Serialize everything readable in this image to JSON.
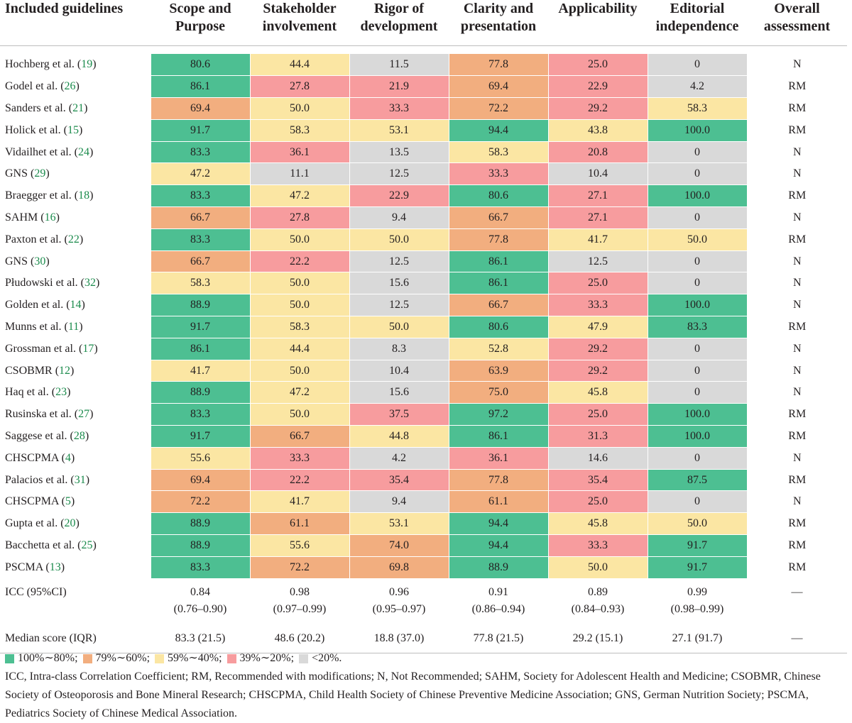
{
  "table": {
    "headers": [
      "Included guidelines",
      "Scope and Purpose",
      "Stakeholder involvement",
      "Rigor of development",
      "Clarity and presentation",
      "Applicability",
      "Editorial independence",
      "Overall assessment"
    ],
    "colors": {
      "g": "#4dbf92",
      "o": "#f2ae7f",
      "y": "#fbe6a3",
      "p": "#f79c9e",
      "gr": "#d9d9d9"
    },
    "rows": [
      {
        "name": "Hochberg et al. (",
        "ref": "19",
        "values": [
          "80.6",
          "44.4",
          "11.5",
          "77.8",
          "25.0",
          "0"
        ],
        "colors": [
          "g",
          "y",
          "gr",
          "o",
          "p",
          "gr"
        ],
        "overall": "N"
      },
      {
        "name": "Godel et al. (",
        "ref": "26",
        "values": [
          "86.1",
          "27.8",
          "21.9",
          "69.4",
          "22.9",
          "4.2"
        ],
        "colors": [
          "g",
          "p",
          "p",
          "o",
          "p",
          "gr"
        ],
        "overall": "RM"
      },
      {
        "name": "Sanders et al. (",
        "ref": "21",
        "values": [
          "69.4",
          "50.0",
          "33.3",
          "72.2",
          "29.2",
          "58.3"
        ],
        "colors": [
          "o",
          "y",
          "p",
          "o",
          "p",
          "y"
        ],
        "overall": "RM"
      },
      {
        "name": "Holick et al. (",
        "ref": "15",
        "values": [
          "91.7",
          "58.3",
          "53.1",
          "94.4",
          "43.8",
          "100.0"
        ],
        "colors": [
          "g",
          "y",
          "y",
          "g",
          "y",
          "g"
        ],
        "overall": "RM"
      },
      {
        "name": "Vidailhet et al. (",
        "ref": "24",
        "values": [
          "83.3",
          "36.1",
          "13.5",
          "58.3",
          "20.8",
          "0"
        ],
        "colors": [
          "g",
          "p",
          "gr",
          "y",
          "p",
          "gr"
        ],
        "overall": "N"
      },
      {
        "name": "GNS (",
        "ref": "29",
        "values": [
          "47.2",
          "11.1",
          "12.5",
          "33.3",
          "10.4",
          "0"
        ],
        "colors": [
          "y",
          "gr",
          "gr",
          "p",
          "gr",
          "gr"
        ],
        "overall": "N"
      },
      {
        "name": "Braegger et al. (",
        "ref": "18",
        "values": [
          "83.3",
          "47.2",
          "22.9",
          "80.6",
          "27.1",
          "100.0"
        ],
        "colors": [
          "g",
          "y",
          "p",
          "g",
          "p",
          "g"
        ],
        "overall": "RM"
      },
      {
        "name": "SAHM (",
        "ref": "16",
        "values": [
          "66.7",
          "27.8",
          "9.4",
          "66.7",
          "27.1",
          "0"
        ],
        "colors": [
          "o",
          "p",
          "gr",
          "o",
          "p",
          "gr"
        ],
        "overall": "N"
      },
      {
        "name": "Paxton et al. (",
        "ref": "22",
        "values": [
          "83.3",
          "50.0",
          "50.0",
          "77.8",
          "41.7",
          "50.0"
        ],
        "colors": [
          "g",
          "y",
          "y",
          "o",
          "y",
          "y"
        ],
        "overall": "RM"
      },
      {
        "name": "GNS (",
        "ref": "30",
        "values": [
          "66.7",
          "22.2",
          "12.5",
          "86.1",
          "12.5",
          "0"
        ],
        "colors": [
          "o",
          "p",
          "gr",
          "g",
          "gr",
          "gr"
        ],
        "overall": "N"
      },
      {
        "name": "Płudowski et al. (",
        "ref": "32",
        "values": [
          "58.3",
          "50.0",
          "15.6",
          "86.1",
          "25.0",
          "0"
        ],
        "colors": [
          "y",
          "y",
          "gr",
          "g",
          "p",
          "gr"
        ],
        "overall": "N"
      },
      {
        "name": "Golden et al. (",
        "ref": "14",
        "values": [
          "88.9",
          "50.0",
          "12.5",
          "66.7",
          "33.3",
          "100.0"
        ],
        "colors": [
          "g",
          "y",
          "gr",
          "o",
          "p",
          "g"
        ],
        "overall": "N"
      },
      {
        "name": "Munns et al. (",
        "ref": "11",
        "values": [
          "91.7",
          "58.3",
          "50.0",
          "80.6",
          "47.9",
          "83.3"
        ],
        "colors": [
          "g",
          "y",
          "y",
          "g",
          "y",
          "g"
        ],
        "overall": "RM"
      },
      {
        "name": "Grossman et al. (",
        "ref": "17",
        "values": [
          "86.1",
          "44.4",
          "8.3",
          "52.8",
          "29.2",
          "0"
        ],
        "colors": [
          "g",
          "y",
          "gr",
          "y",
          "p",
          "gr"
        ],
        "overall": "N"
      },
      {
        "name": "CSOBMR (",
        "ref": "12",
        "values": [
          "41.7",
          "50.0",
          "10.4",
          "63.9",
          "29.2",
          "0"
        ],
        "colors": [
          "y",
          "y",
          "gr",
          "o",
          "p",
          "gr"
        ],
        "overall": "N"
      },
      {
        "name": "Haq et al. (",
        "ref": "23",
        "values": [
          "88.9",
          "47.2",
          "15.6",
          "75.0",
          "45.8",
          "0"
        ],
        "colors": [
          "g",
          "y",
          "gr",
          "o",
          "y",
          "gr"
        ],
        "overall": "N"
      },
      {
        "name": "Rusinska et al. (",
        "ref": "27",
        "values": [
          "83.3",
          "50.0",
          "37.5",
          "97.2",
          "25.0",
          "100.0"
        ],
        "colors": [
          "g",
          "y",
          "p",
          "g",
          "p",
          "g"
        ],
        "overall": "RM"
      },
      {
        "name": "Saggese et al. (",
        "ref": "28",
        "values": [
          "91.7",
          "66.7",
          "44.8",
          "86.1",
          "31.3",
          "100.0"
        ],
        "colors": [
          "g",
          "o",
          "y",
          "g",
          "p",
          "g"
        ],
        "overall": "RM"
      },
      {
        "name": "CHSCPMA (",
        "ref": "4",
        "values": [
          "55.6",
          "33.3",
          "4.2",
          "36.1",
          "14.6",
          "0"
        ],
        "colors": [
          "y",
          "p",
          "gr",
          "p",
          "gr",
          "gr"
        ],
        "overall": "N"
      },
      {
        "name": "Palacios et al. (",
        "ref": "31",
        "values": [
          "69.4",
          "22.2",
          "35.4",
          "77.8",
          "35.4",
          "87.5"
        ],
        "colors": [
          "o",
          "p",
          "p",
          "o",
          "p",
          "g"
        ],
        "overall": "RM"
      },
      {
        "name": "CHSCPMA (",
        "ref": "5",
        "values": [
          "72.2",
          "41.7",
          "9.4",
          "61.1",
          "25.0",
          "0"
        ],
        "colors": [
          "o",
          "y",
          "gr",
          "o",
          "p",
          "gr"
        ],
        "overall": "N"
      },
      {
        "name": "Gupta et al. (",
        "ref": "20",
        "values": [
          "88.9",
          "61.1",
          "53.1",
          "94.4",
          "45.8",
          "50.0"
        ],
        "colors": [
          "g",
          "o",
          "y",
          "g",
          "y",
          "y"
        ],
        "overall": "RM"
      },
      {
        "name": "Bacchetta et al. (",
        "ref": "25",
        "values": [
          "88.9",
          "55.6",
          "74.0",
          "94.4",
          "33.3",
          "91.7"
        ],
        "colors": [
          "g",
          "y",
          "o",
          "g",
          "p",
          "g"
        ],
        "overall": "RM"
      },
      {
        "name": "PSCMA (",
        "ref": "13",
        "values": [
          "83.3",
          "72.2",
          "69.8",
          "88.9",
          "50.0",
          "91.7"
        ],
        "colors": [
          "g",
          "o",
          "o",
          "g",
          "y",
          "g"
        ],
        "overall": "RM"
      }
    ],
    "icc": {
      "label": "ICC (95%CI)",
      "values": [
        "0.84",
        "0.98",
        "0.96",
        "0.91",
        "0.89",
        "0.99"
      ],
      "ci": [
        "(0.76–0.90)",
        "(0.97–0.99)",
        "(0.95–0.97)",
        "(0.86–0.94)",
        "(0.84–0.93)",
        "(0.98–0.99)"
      ],
      "overall": "—"
    },
    "median": {
      "label": "Median score (IQR)",
      "values": [
        "83.3 (21.5)",
        "48.6 (20.2)",
        "18.8 (37.0)",
        "77.8 (21.5)",
        "29.2 (15.1)",
        "27.1 (91.7)"
      ],
      "overall": "—"
    }
  },
  "legend": {
    "items": [
      {
        "color": "g",
        "label": "100%∼80%;"
      },
      {
        "color": "o",
        "label": "79%∼60%;"
      },
      {
        "color": "y",
        "label": "59%∼40%;"
      },
      {
        "color": "p",
        "label": "39%∼20%;"
      },
      {
        "color": "gr",
        "label": "<20%."
      }
    ],
    "footnote": "ICC, Intra-class Correlation Coefficient; RM, Recommended with modifications; N, Not Recommended; SAHM, Society for Adolescent Health and Medicine; CSOBMR, Chinese Society of Osteoporosis and Bone Mineral Research; CHSCPMA, Child Health Society of Chinese Preventive Medicine Association; GNS, German Nutrition Society; PSCMA, Pediatrics Society of Chinese Medical Association."
  }
}
